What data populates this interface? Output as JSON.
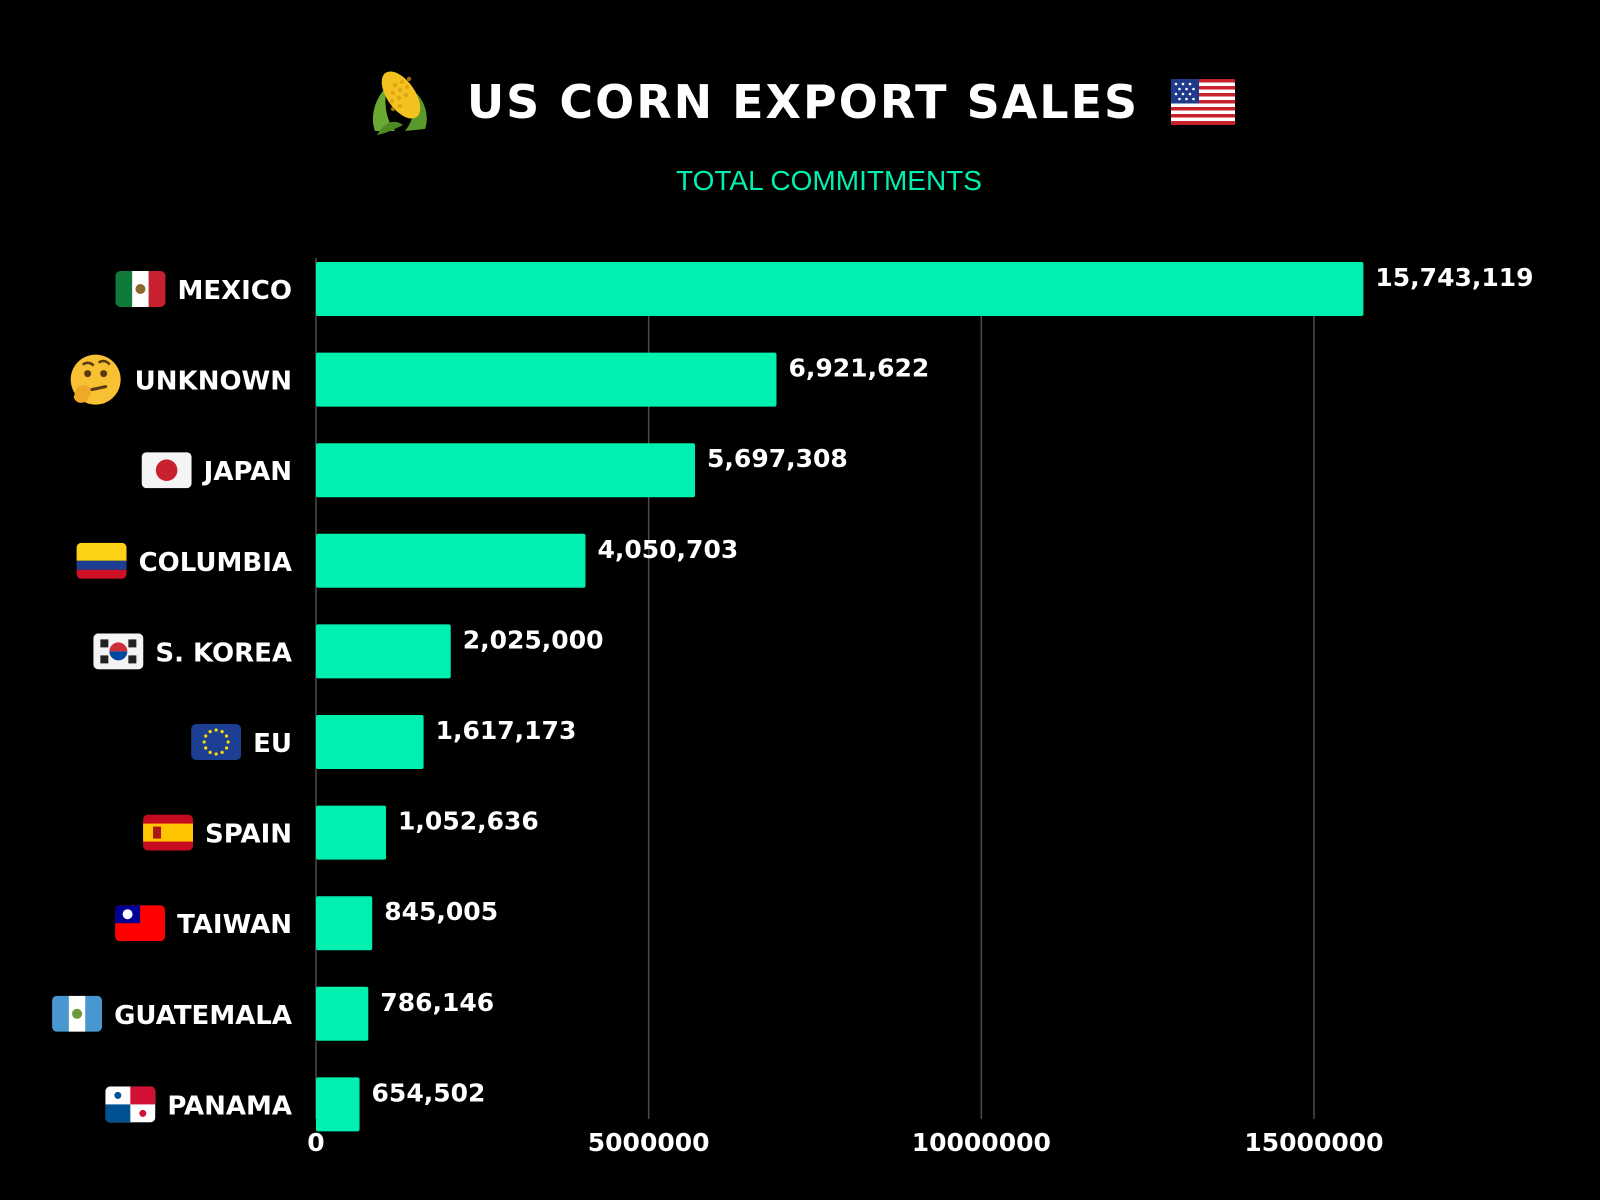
{
  "header": {
    "title": "US CORN EXPORT SALES",
    "title_left_icon": "corn-icon",
    "title_right_icon": "us-flag-icon",
    "subtitle": "TOTAL COMMITMENTS"
  },
  "colors": {
    "background": "#000000",
    "bar": "#00f0b0",
    "accent": "#00f0b0",
    "text": "#ffffff",
    "grid": "#4a4a4a"
  },
  "chart_data": {
    "type": "bar",
    "orientation": "horizontal",
    "title": "US CORN EXPORT SALES",
    "subtitle": "TOTAL COMMITMENTS",
    "categories": [
      "MEXICO",
      "UNKNOWN",
      "JAPAN",
      "COLUMBIA",
      "S. KOREA",
      "EU",
      "SPAIN",
      "TAIWAN",
      "GUATEMALA",
      "PANAMA"
    ],
    "category_icons": [
      "mexico-flag-icon",
      "thinking-face-icon",
      "japan-flag-icon",
      "colombia-flag-icon",
      "south-korea-flag-icon",
      "eu-flag-icon",
      "spain-flag-icon",
      "taiwan-flag-icon",
      "guatemala-flag-icon",
      "panama-flag-icon"
    ],
    "values": [
      15743119,
      6921622,
      5697308,
      4050703,
      2025000,
      1617173,
      1052636,
      845005,
      786146,
      654502
    ],
    "value_labels": [
      "15,743,119",
      "6,921,622",
      "5,697,308",
      "4,050,703",
      "2,025,000",
      "1,617,173",
      "1,052,636",
      "845,005",
      "786,146",
      "654,502"
    ],
    "x_ticks": [
      0,
      5000000,
      10000000,
      15000000
    ],
    "x_tick_labels": [
      "0",
      "5000000",
      "10000000",
      "15000000"
    ],
    "xlim": [
      0,
      16600000
    ],
    "grid": "vertical",
    "legend": "none"
  }
}
